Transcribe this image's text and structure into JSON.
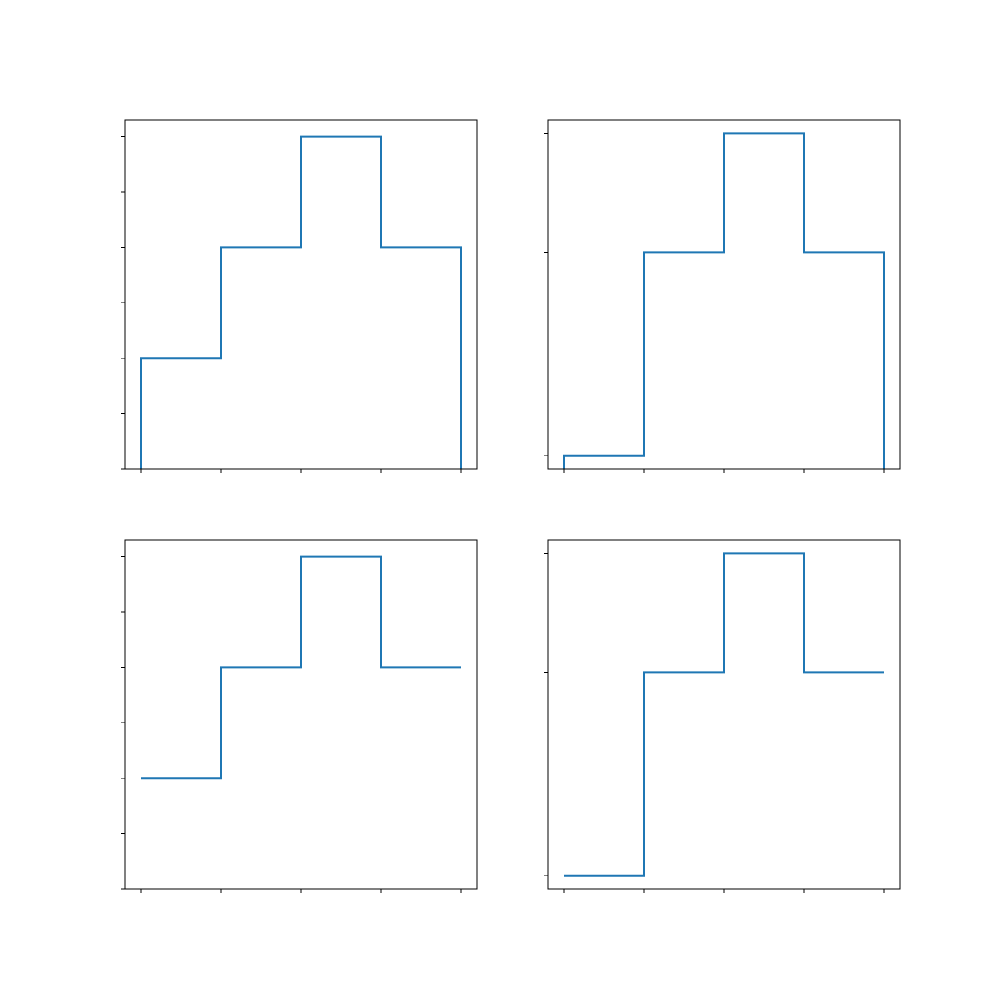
{
  "colors": {
    "line": "#1f77b4",
    "axes": "#000000",
    "background": "#ffffff"
  },
  "chart_data": [
    {
      "type": "line",
      "style": "stairs",
      "yscale": "linear",
      "edges": [
        0,
        1,
        2,
        3,
        4
      ],
      "values": [
        1,
        2,
        3,
        2
      ],
      "closed_to_baseline": true,
      "xlim": [
        -0.2,
        4.2
      ],
      "ylim": [
        0,
        3.15
      ],
      "yticks": [
        0,
        0.5,
        1,
        1.5,
        2,
        2.5,
        3
      ],
      "xticks": [
        0,
        1,
        2,
        3,
        4
      ],
      "title": "",
      "xlabel": "",
      "ylabel": "",
      "tick_labels_shown": false,
      "grid": false,
      "legend": "none"
    },
    {
      "type": "line",
      "style": "stairs",
      "yscale": "log",
      "edges": [
        0,
        1,
        2,
        3,
        4
      ],
      "values": [
        1,
        2,
        3,
        2
      ],
      "closed_to_baseline": true,
      "xlim": [
        -0.2,
        4.2
      ],
      "ylim": [
        0.956,
        3.14
      ],
      "yticks": [
        1,
        2,
        3
      ],
      "xticks": [
        0,
        1,
        2,
        3,
        4
      ],
      "title": "",
      "xlabel": "",
      "ylabel": "",
      "tick_labels_shown": false,
      "grid": false,
      "legend": "none"
    },
    {
      "type": "line",
      "style": "stairs",
      "yscale": "linear",
      "edges": [
        0,
        1,
        2,
        3,
        4
      ],
      "values": [
        1,
        2,
        3,
        2
      ],
      "closed_to_baseline": false,
      "xlim": [
        -0.2,
        4.2
      ],
      "ylim": [
        0,
        3.15
      ],
      "yticks": [
        0,
        0.5,
        1,
        1.5,
        2,
        2.5,
        3
      ],
      "xticks": [
        0,
        1,
        2,
        3,
        4
      ],
      "title": "",
      "xlabel": "",
      "ylabel": "",
      "tick_labels_shown": false,
      "grid": false,
      "legend": "none"
    },
    {
      "type": "line",
      "style": "stairs",
      "yscale": "log",
      "edges": [
        0,
        1,
        2,
        3,
        4
      ],
      "values": [
        1,
        2,
        3,
        2
      ],
      "closed_to_baseline": false,
      "xlim": [
        -0.2,
        4.2
      ],
      "ylim": [
        0.956,
        3.14
      ],
      "yticks": [
        1,
        2,
        3
      ],
      "xticks": [
        0,
        1,
        2,
        3,
        4
      ],
      "title": "",
      "xlabel": "",
      "ylabel": "",
      "tick_labels_shown": false,
      "grid": false,
      "legend": "none"
    }
  ]
}
